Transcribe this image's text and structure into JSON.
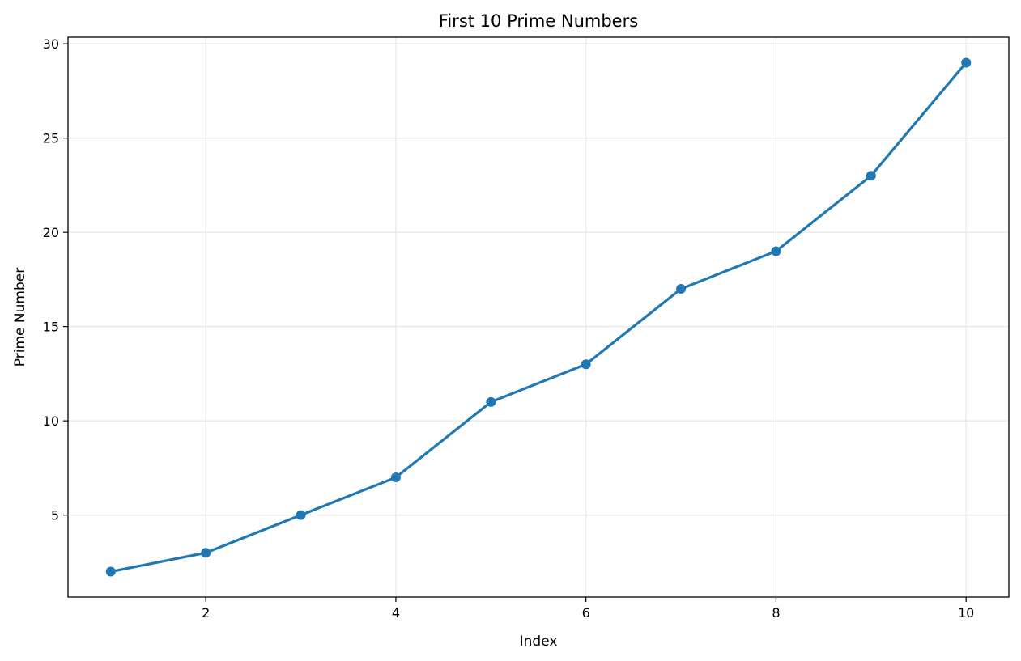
{
  "chart_data": {
    "type": "line",
    "title": "First 10 Prime Numbers",
    "xlabel": "Index",
    "ylabel": "Prime Number",
    "x": [
      1,
      2,
      3,
      4,
      5,
      6,
      7,
      8,
      9,
      10
    ],
    "series": [
      {
        "values": [
          2,
          3,
          5,
          7,
          11,
          13,
          17,
          19,
          23,
          29
        ],
        "color": "#1f77b4",
        "marker": "circle"
      }
    ],
    "xticks": [
      2,
      4,
      6,
      8,
      10
    ],
    "yticks": [
      5,
      10,
      15,
      20,
      25,
      30
    ],
    "xlim": [
      0.55,
      10.45
    ],
    "ylim": [
      0.65,
      30.35
    ],
    "grid": true,
    "legend": "none"
  }
}
